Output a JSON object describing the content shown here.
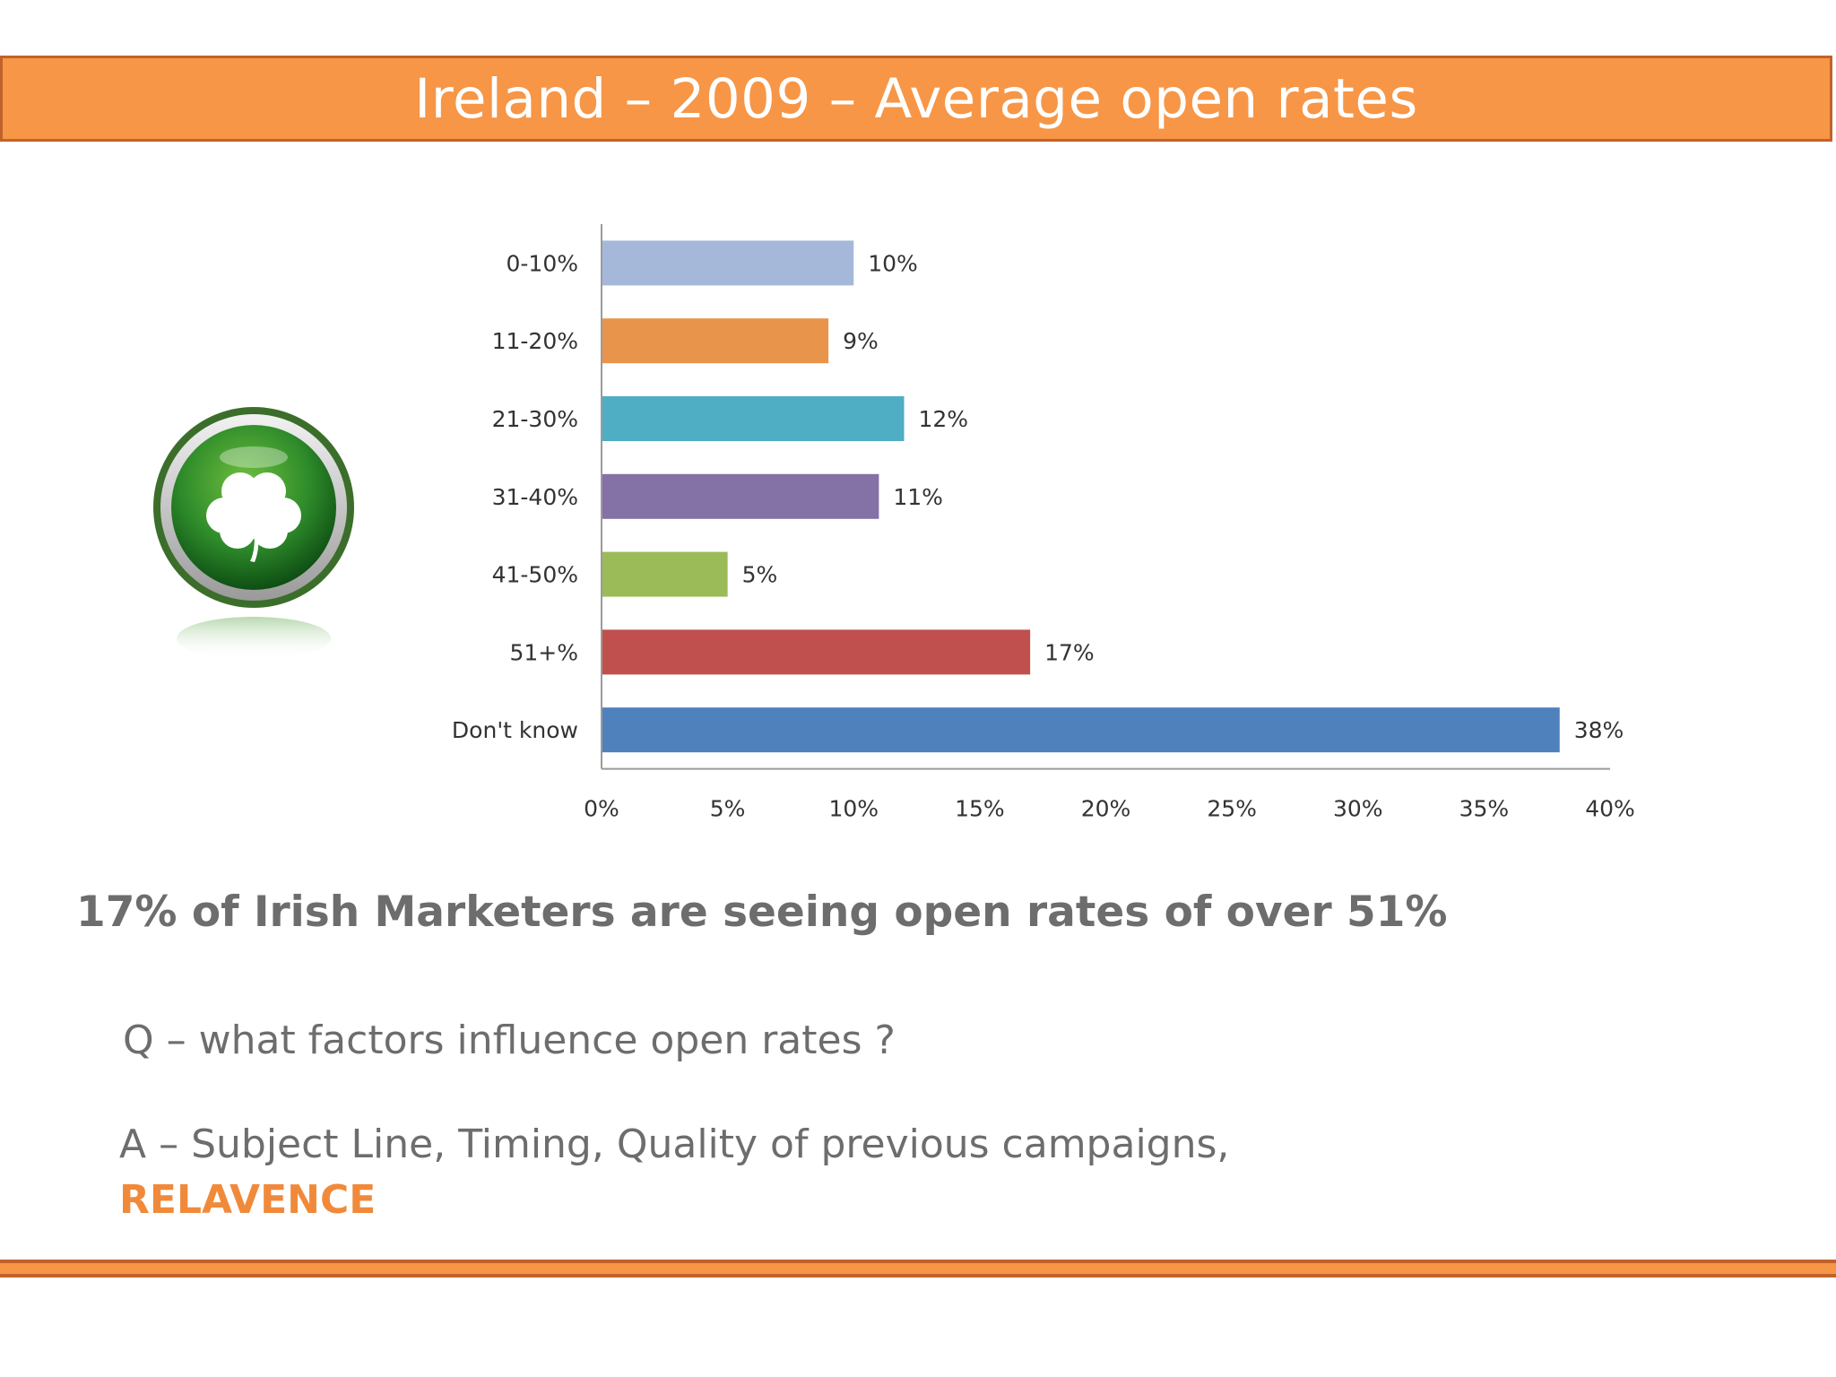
{
  "slide": {
    "title": "Ireland – 2009 – Average open rates",
    "headline": "17% of Irish Marketers are seeing open rates of over 51%",
    "question": "Q – what factors influence open rates ?",
    "answer_line1": "A – Subject Line, Timing, Quality of previous campaigns,",
    "answer_highlight": "RELAVENCE"
  },
  "colors": {
    "banner": "#f79646",
    "banner_border": "#c0622b",
    "highlight": "#f08a3a",
    "body_text": "#6d6d6d"
  },
  "logo": {
    "icon": "shamrock-icon"
  },
  "chart_data": {
    "type": "bar",
    "orientation": "horizontal",
    "categories": [
      "0-10%",
      "11-20%",
      "21-30%",
      "31-40%",
      "41-50%",
      "51+%",
      "Don't know"
    ],
    "values": [
      10,
      9,
      12,
      11,
      5,
      17,
      38
    ],
    "value_labels": [
      "10%",
      "9%",
      "12%",
      "11%",
      "5%",
      "17%",
      "38%"
    ],
    "colors": [
      "#a5b8da",
      "#e8944b",
      "#4fadc4",
      "#8471a6",
      "#9bbb59",
      "#c0504d",
      "#4f81bd"
    ],
    "xlim": [
      0,
      40
    ],
    "xticks": [
      0,
      5,
      10,
      15,
      20,
      25,
      30,
      35,
      40
    ],
    "xtick_labels": [
      "0%",
      "5%",
      "10%",
      "15%",
      "20%",
      "25%",
      "30%",
      "35%",
      "40%"
    ],
    "grid": false,
    "legend": "none"
  }
}
